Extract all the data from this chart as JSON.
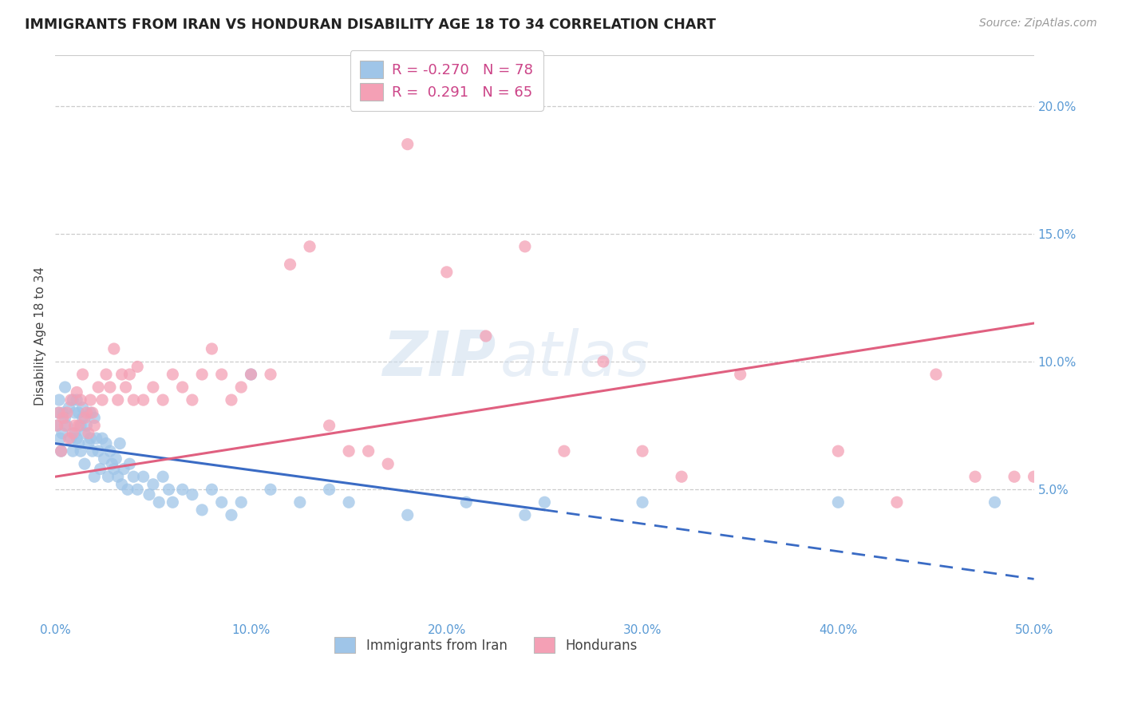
{
  "title": "IMMIGRANTS FROM IRAN VS HONDURAN DISABILITY AGE 18 TO 34 CORRELATION CHART",
  "source": "Source: ZipAtlas.com",
  "ylabel": "Disability Age 18 to 34",
  "xlim": [
    0.0,
    50.0
  ],
  "ylim": [
    0.0,
    22.0
  ],
  "iran_R": -0.27,
  "iran_N": 78,
  "honduran_R": 0.291,
  "honduran_N": 65,
  "iran_color": "#9FC5E8",
  "honduran_color": "#F4A0B5",
  "iran_line_color": "#3A6BC4",
  "honduran_line_color": "#E06080",
  "legend_label_iran": "Immigrants from Iran",
  "legend_label_honduran": "Hondurans",
  "watermark": "ZIPatlas",
  "iran_line_start_x": 0.0,
  "iran_line_start_y": 6.8,
  "iran_line_end_x": 25.0,
  "iran_line_end_y": 4.2,
  "iran_line_dash_end_x": 50.0,
  "iran_line_dash_end_y": 1.5,
  "hond_line_start_x": 0.0,
  "hond_line_start_y": 5.5,
  "hond_line_end_x": 50.0,
  "hond_line_end_y": 11.5,
  "iran_x": [
    0.1,
    0.15,
    0.2,
    0.25,
    0.3,
    0.35,
    0.4,
    0.5,
    0.5,
    0.6,
    0.7,
    0.8,
    0.9,
    0.9,
    1.0,
    1.0,
    1.1,
    1.1,
    1.2,
    1.2,
    1.3,
    1.3,
    1.4,
    1.4,
    1.5,
    1.5,
    1.6,
    1.7,
    1.8,
    1.8,
    1.9,
    2.0,
    2.0,
    2.1,
    2.2,
    2.3,
    2.4,
    2.5,
    2.6,
    2.7,
    2.8,
    2.9,
    3.0,
    3.1,
    3.2,
    3.3,
    3.4,
    3.5,
    3.7,
    3.8,
    4.0,
    4.2,
    4.5,
    4.8,
    5.0,
    5.3,
    5.5,
    5.8,
    6.0,
    6.5,
    7.0,
    7.5,
    8.0,
    8.5,
    9.0,
    9.5,
    10.0,
    11.0,
    12.5,
    14.0,
    15.0,
    18.0,
    21.0,
    24.0,
    25.0,
    30.0,
    40.0,
    48.0
  ],
  "iran_y": [
    7.5,
    8.0,
    8.5,
    7.0,
    6.5,
    7.2,
    8.0,
    7.8,
    9.0,
    7.5,
    8.2,
    7.0,
    8.5,
    6.5,
    8.0,
    7.2,
    8.5,
    7.0,
    8.0,
    6.8,
    7.5,
    6.5,
    7.8,
    8.2,
    7.2,
    6.0,
    7.5,
    6.8,
    7.0,
    8.0,
    6.5,
    7.8,
    5.5,
    7.0,
    6.5,
    5.8,
    7.0,
    6.2,
    6.8,
    5.5,
    6.5,
    6.0,
    5.8,
    6.2,
    5.5,
    6.8,
    5.2,
    5.8,
    5.0,
    6.0,
    5.5,
    5.0,
    5.5,
    4.8,
    5.2,
    4.5,
    5.5,
    5.0,
    4.5,
    5.0,
    4.8,
    4.2,
    5.0,
    4.5,
    4.0,
    4.5,
    9.5,
    5.0,
    4.5,
    5.0,
    4.5,
    4.0,
    4.5,
    4.0,
    4.5,
    4.5,
    4.5,
    4.5
  ],
  "honduran_x": [
    0.1,
    0.2,
    0.3,
    0.4,
    0.5,
    0.6,
    0.7,
    0.8,
    0.9,
    1.0,
    1.1,
    1.2,
    1.3,
    1.4,
    1.5,
    1.6,
    1.7,
    1.8,
    1.9,
    2.0,
    2.2,
    2.4,
    2.6,
    2.8,
    3.0,
    3.2,
    3.4,
    3.6,
    3.8,
    4.0,
    4.2,
    4.5,
    5.0,
    5.5,
    6.0,
    6.5,
    7.0,
    7.5,
    8.0,
    8.5,
    9.0,
    9.5,
    10.0,
    11.0,
    12.0,
    13.0,
    14.0,
    15.0,
    16.0,
    17.0,
    18.0,
    20.0,
    22.0,
    24.0,
    26.0,
    28.0,
    30.0,
    32.0,
    35.0,
    40.0,
    43.0,
    45.0,
    47.0,
    49.0,
    50.0
  ],
  "honduran_y": [
    7.5,
    8.0,
    6.5,
    7.8,
    7.5,
    8.0,
    7.0,
    8.5,
    7.2,
    7.5,
    8.8,
    7.5,
    8.5,
    9.5,
    7.8,
    8.0,
    7.2,
    8.5,
    8.0,
    7.5,
    9.0,
    8.5,
    9.5,
    9.0,
    10.5,
    8.5,
    9.5,
    9.0,
    9.5,
    8.5,
    9.8,
    8.5,
    9.0,
    8.5,
    9.5,
    9.0,
    8.5,
    9.5,
    10.5,
    9.5,
    8.5,
    9.0,
    9.5,
    9.5,
    13.8,
    14.5,
    7.5,
    6.5,
    6.5,
    6.0,
    18.5,
    13.5,
    11.0,
    14.5,
    6.5,
    10.0,
    6.5,
    5.5,
    9.5,
    6.5,
    4.5,
    9.5,
    5.5,
    5.5,
    5.5
  ]
}
